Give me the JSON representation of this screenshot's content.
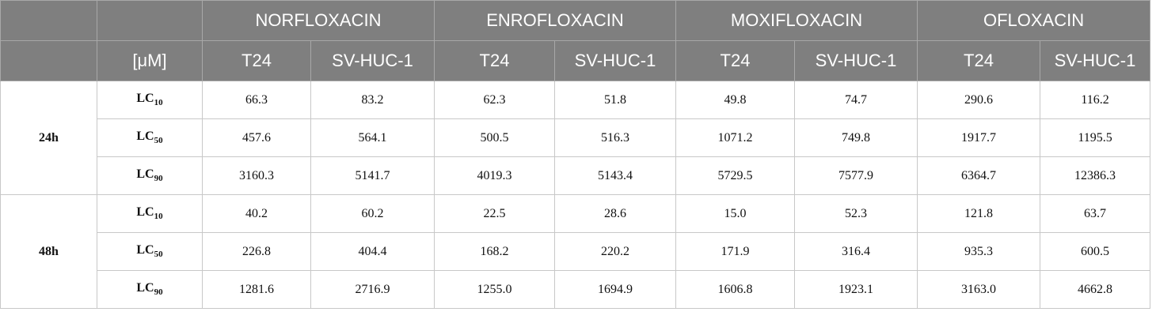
{
  "header": {
    "drugs": [
      "NORFLOXACIN",
      "ENROFLOXACIN",
      "MOXIFLOXACIN",
      "OFLOXACIN"
    ],
    "unit": "[μM]",
    "cells": [
      "T24",
      "SV-HUC-1",
      "T24",
      "SV-HUC-1",
      "T24",
      "SV-HUC-1",
      "T24",
      "SV-HUC-1"
    ]
  },
  "groups": [
    {
      "time": "24h",
      "rows": [
        {
          "label": {
            "base": "LC",
            "sub": "10"
          },
          "values": [
            "66.3",
            "83.2",
            "62.3",
            "51.8",
            "49.8",
            "74.7",
            "290.6",
            "116.2"
          ]
        },
        {
          "label": {
            "base": "LC",
            "sub": "50"
          },
          "values": [
            "457.6",
            "564.1",
            "500.5",
            "516.3",
            "1071.2",
            "749.8",
            "1917.7",
            "1195.5"
          ]
        },
        {
          "label": {
            "base": "LC",
            "sub": "90"
          },
          "values": [
            "3160.3",
            "5141.7",
            "4019.3",
            "5143.4",
            "5729.5",
            "7577.9",
            "6364.7",
            "12386.3"
          ]
        }
      ]
    },
    {
      "time": "48h",
      "rows": [
        {
          "label": {
            "base": "LC",
            "sub": "10"
          },
          "values": [
            "40.2",
            "60.2",
            "22.5",
            "28.6",
            "15.0",
            "52.3",
            "121.8",
            "63.7"
          ]
        },
        {
          "label": {
            "base": "LC",
            "sub": "50"
          },
          "values": [
            "226.8",
            "404.4",
            "168.2",
            "220.2",
            "171.9",
            "316.4",
            "935.3",
            "600.5"
          ]
        },
        {
          "label": {
            "base": "LC",
            "sub": "90"
          },
          "values": [
            "1281.6",
            "2716.9",
            "1255.0",
            "1694.9",
            "1606.8",
            "1923.1",
            "3163.0",
            "4662.8"
          ]
        }
      ]
    }
  ]
}
